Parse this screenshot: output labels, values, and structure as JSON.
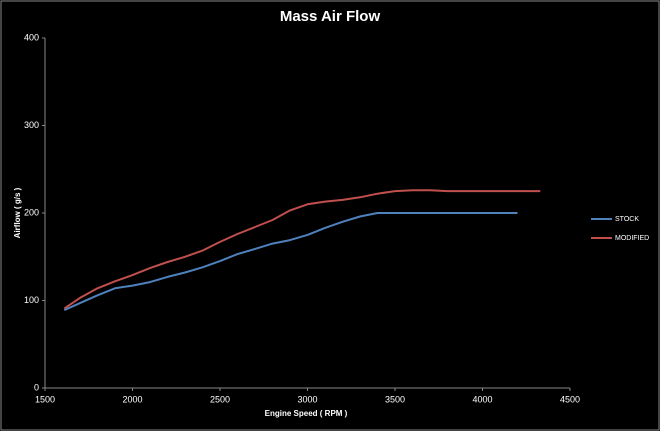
{
  "chart_data": {
    "type": "line",
    "title": "Mass Air Flow",
    "x_label": "Engine Speed ( RPM )",
    "y_label": "Airflow ( g/s )",
    "xlim": [
      1500,
      4500
    ],
    "xticks": [
      1500,
      2000,
      2500,
      3000,
      3500,
      4000,
      4500
    ],
    "ylim": [
      0,
      400
    ],
    "yticks": [
      0,
      100,
      200,
      300,
      400
    ],
    "grid": false,
    "legend": "right",
    "series": [
      {
        "name": "STOCK",
        "color": "#4f81bd",
        "x": [
          1610,
          1700,
          1800,
          1900,
          2000,
          2100,
          2200,
          2300,
          2400,
          2500,
          2600,
          2700,
          2800,
          2900,
          3000,
          3100,
          3200,
          3300,
          3400,
          3500,
          3800,
          4200
        ],
        "values": [
          89,
          97,
          106,
          114,
          117,
          121,
          127,
          132,
          138,
          145,
          153,
          159,
          165,
          169,
          175,
          183,
          190,
          196,
          200,
          200,
          200,
          200
        ]
      },
      {
        "name": "MODIFIED",
        "color": "#c0504d",
        "x": [
          1610,
          1700,
          1800,
          1900,
          2000,
          2100,
          2200,
          2300,
          2400,
          2500,
          2600,
          2700,
          2800,
          2900,
          3000,
          3100,
          3200,
          3300,
          3400,
          3500,
          3600,
          3700,
          3800,
          4330
        ],
        "values": [
          91,
          103,
          114,
          122,
          129,
          137,
          144,
          150,
          157,
          167,
          176,
          184,
          192,
          203,
          210,
          213,
          215,
          218,
          222,
          225,
          226,
          226,
          225,
          225
        ]
      }
    ]
  }
}
